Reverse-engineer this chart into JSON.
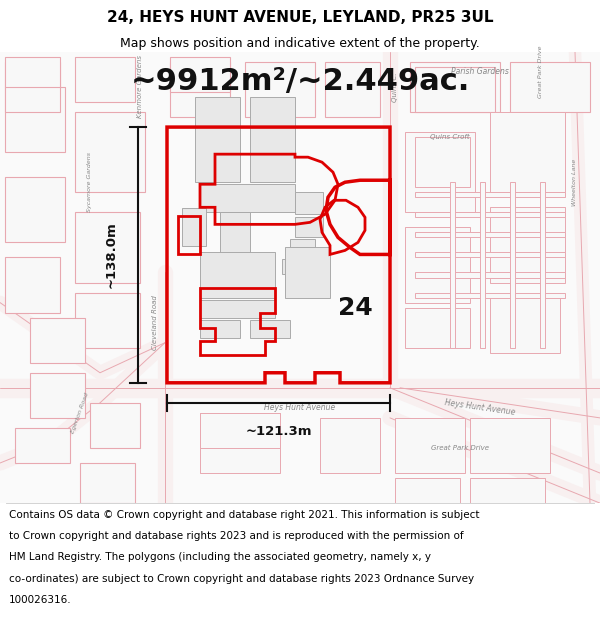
{
  "title": "24, HEYS HUNT AVENUE, LEYLAND, PR25 3UL",
  "subtitle": "Map shows position and indicative extent of the property.",
  "area_text": "~9912m²/~2.449ac.",
  "label_24": "24",
  "dim_width": "~121.3m",
  "dim_height": "~138.0m",
  "footer": "Contains OS data © Crown copyright and database right 2021. This information is subject to Crown copyright and database rights 2023 and is reproduced with the permission of HM Land Registry. The polygons (including the associated geometry, namely x, y co-ordinates) are subject to Crown copyright and database rights 2023 Ordnance Survey 100026316.",
  "bg_color": "#ffffff",
  "map_bg": "#ffffff",
  "road_color": "#e8a8b0",
  "building_fill": "#e8e8e8",
  "building_edge": "#aaaaaa",
  "boundary_color": "#dd0000",
  "dim_line_color": "#111111",
  "road_text_color": "#888888",
  "title_fontsize": 11,
  "subtitle_fontsize": 9,
  "area_fontsize": 22,
  "footer_fontsize": 7.5
}
